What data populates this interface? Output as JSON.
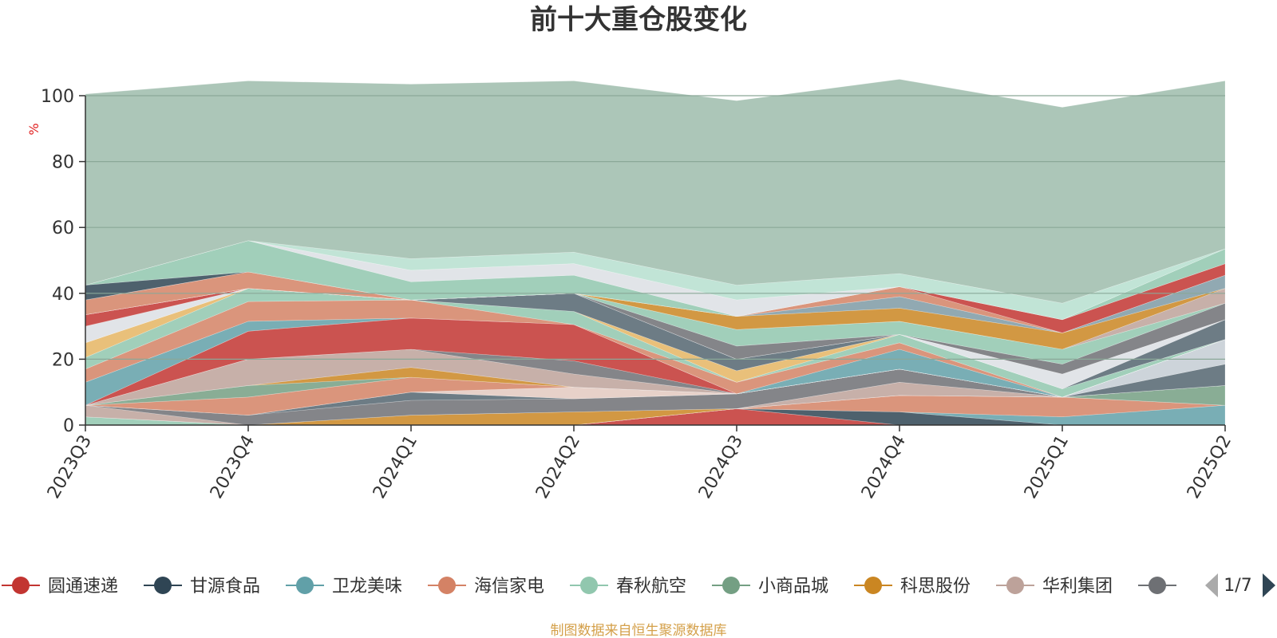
{
  "chart_data": {
    "type": "area",
    "title": "前十大重仓股变化",
    "y_unit": "%",
    "ylim": [
      0,
      100
    ],
    "y_ticks": [
      "0",
      "20",
      "40",
      "60",
      "80",
      "100"
    ],
    "categories": [
      "2023Q3",
      "2023Q4",
      "2024Q1",
      "2024Q2",
      "2024Q3",
      "2024Q4",
      "2025Q1",
      "2025Q2"
    ],
    "grid": true,
    "legend_position": "bottom",
    "series": [
      {
        "name": "圆通速递",
        "color": "#c23531",
        "values": [
          0,
          0,
          0,
          0,
          5.0,
          0,
          0,
          0
        ]
      },
      {
        "name": "甘源食品",
        "color": "#2f4554",
        "values": [
          0,
          0,
          0,
          0,
          0,
          4.0,
          0,
          0
        ]
      },
      {
        "name": "卫龙美味",
        "color": "#61a0a8",
        "values": [
          0,
          0,
          0,
          0,
          0,
          0,
          2.5,
          6.0
        ]
      },
      {
        "name": "海信家电",
        "color": "#d48265",
        "values": [
          0,
          0,
          0,
          0,
          0,
          5.0,
          6.0,
          0
        ]
      },
      {
        "name": "春秋航空",
        "color": "#91c7ae",
        "values": [
          2.5,
          0,
          0,
          0,
          0,
          0,
          0,
          0
        ]
      },
      {
        "name": "小商品城",
        "color": "#749f83",
        "values": [
          0,
          0,
          0,
          0,
          0,
          0,
          0,
          6.0
        ]
      },
      {
        "name": "科思股份",
        "color": "#ca8622",
        "values": [
          0,
          0,
          3.0,
          4.0,
          0,
          0,
          0,
          0
        ]
      },
      {
        "name": "华利集团",
        "color": "#bda29a",
        "values": [
          3.5,
          0,
          0,
          0,
          0,
          4.0,
          0,
          0
        ]
      },
      {
        "name": "",
        "color": "#6e7074",
        "values": [
          0,
          3.0,
          4.5,
          4.0,
          4.5,
          4.0,
          0,
          0
        ]
      },
      {
        "name": "",
        "color": "#546570",
        "values": [
          0,
          0,
          2.5,
          0,
          0,
          0,
          0,
          6.5
        ]
      },
      {
        "name": "",
        "color": "#c4ccd3",
        "values": [
          0,
          0,
          0,
          0,
          0,
          0,
          0,
          7.5
        ]
      },
      {
        "name": "",
        "color": "#e3c9c0",
        "values": [
          0,
          0,
          0,
          3.5,
          0,
          0,
          0,
          0
        ]
      },
      {
        "name": "",
        "color": "#d48265",
        "values": [
          0,
          5.5,
          4.5,
          0,
          0,
          0,
          0,
          0
        ]
      },
      {
        "name": "",
        "color": "#749f83",
        "values": [
          0,
          3.5,
          0,
          0,
          0,
          0,
          0,
          0
        ]
      },
      {
        "name": "",
        "color": "#ca8622",
        "values": [
          0,
          0,
          3.0,
          0,
          0,
          0,
          0,
          0
        ]
      },
      {
        "name": "",
        "color": "#bda29a",
        "values": [
          0,
          8.0,
          5.5,
          4.0,
          0,
          0,
          0,
          0
        ]
      },
      {
        "name": "",
        "color": "#6e7074",
        "values": [
          0,
          0,
          0,
          4.0,
          0,
          0,
          0,
          0
        ]
      },
      {
        "name": "",
        "color": "#c23531",
        "values": [
          0,
          8.5,
          9.5,
          11.0,
          0,
          0,
          0,
          0
        ]
      },
      {
        "name": "",
        "color": "#61a0a8",
        "values": [
          7.0,
          3.0,
          0,
          0,
          0,
          6.0,
          0,
          0
        ]
      },
      {
        "name": "",
        "color": "#d48265",
        "values": [
          4.0,
          6.0,
          5.5,
          0,
          3.5,
          2.0,
          0,
          0
        ]
      },
      {
        "name": "",
        "color": "#91c7ae",
        "values": [
          3.5,
          4.0,
          0,
          4.0,
          0,
          2.5,
          2.5,
          0
        ]
      },
      {
        "name": "",
        "color": "#e5b563",
        "values": [
          4.5,
          0,
          0,
          0,
          3.5,
          0,
          0,
          0
        ]
      },
      {
        "name": "",
        "color": "#546570",
        "values": [
          0,
          0,
          0,
          5.5,
          3.5,
          0,
          0,
          6.0
        ]
      },
      {
        "name": "",
        "color": "#dcdfe4",
        "values": [
          5.0,
          0,
          0,
          0,
          0,
          0,
          4.5,
          0
        ]
      },
      {
        "name": "",
        "color": "#c23531",
        "values": [
          3.5,
          0,
          0,
          0,
          0,
          0,
          0,
          0
        ]
      },
      {
        "name": "",
        "color": "#6e7074",
        "values": [
          0,
          0,
          0,
          0,
          4.0,
          0,
          3.0,
          5.0
        ]
      },
      {
        "name": "",
        "color": "#91c7ae",
        "values": [
          0,
          0,
          0,
          0,
          5.0,
          4.0,
          4.5,
          0
        ]
      },
      {
        "name": "",
        "color": "#bda29a",
        "values": [
          0,
          0,
          0,
          0,
          0,
          0,
          0,
          4.5
        ]
      },
      {
        "name": "",
        "color": "#ca8622",
        "values": [
          0,
          0,
          0,
          0,
          4.0,
          4.0,
          5.0,
          0
        ]
      },
      {
        "name": "",
        "color": "#7e9aa5",
        "values": [
          0,
          0,
          0,
          0,
          0,
          3.5,
          0,
          4.0
        ]
      },
      {
        "name": "",
        "color": "#d48265",
        "values": [
          4.5,
          5.0,
          0,
          0,
          0,
          3.0,
          0,
          0
        ]
      },
      {
        "name": "",
        "color": "#c23531",
        "values": [
          0,
          0,
          0,
          0,
          0,
          0,
          4.0,
          3.5
        ]
      },
      {
        "name": "",
        "color": "#2f4554",
        "values": [
          4.5,
          0,
          0,
          0,
          0,
          0,
          0,
          0
        ]
      },
      {
        "name": "",
        "color": "#91c7ae",
        "values": [
          0,
          9.5,
          5.5,
          5.5,
          0,
          0,
          0,
          4.5
        ]
      },
      {
        "name": "",
        "color": "#dcdfe4",
        "values": [
          0,
          0,
          3.5,
          3.5,
          5.0,
          0,
          0,
          0
        ]
      },
      {
        "name": "",
        "color": "#b6dfcf",
        "values": [
          0,
          0,
          3.5,
          3.5,
          4.5,
          4.0,
          5.0,
          0
        ]
      },
      {
        "name": "",
        "color": "#9ebcab",
        "values": [
          58.0,
          48.5,
          53.0,
          52.0,
          56.0,
          59.0,
          59.5,
          51.0
        ]
      }
    ]
  },
  "legend": {
    "items": [
      {
        "label": "圆通速递",
        "color": "#c23531"
      },
      {
        "label": "甘源食品",
        "color": "#2f4554"
      },
      {
        "label": "卫龙美味",
        "color": "#61a0a8"
      },
      {
        "label": "海信家电",
        "color": "#d48265"
      },
      {
        "label": "春秋航空",
        "color": "#91c7ae"
      },
      {
        "label": "小商品城",
        "color": "#749f83"
      },
      {
        "label": "科思股份",
        "color": "#ca8622"
      },
      {
        "label": "华利集团",
        "color": "#bda29a"
      },
      {
        "label": "",
        "color": "#6e7074"
      }
    ],
    "page_indicator": "1/7",
    "prev_icon": "triangle-left-icon",
    "next_icon": "triangle-right-icon"
  },
  "footer": {
    "source_text": "制图数据来自恒生聚源数据库",
    "color": "#d4a04a"
  },
  "colors": {
    "unit_color": "#e02020",
    "axis_color": "#333333",
    "grid_color": "#8aa898"
  }
}
